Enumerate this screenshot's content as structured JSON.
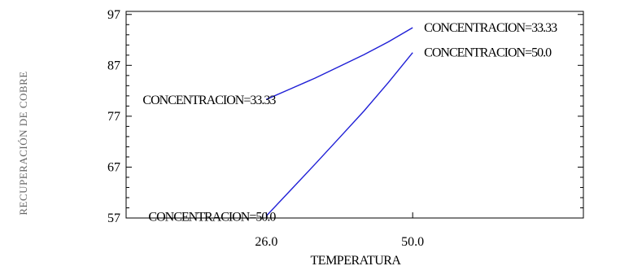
{
  "chart_data": {
    "type": "line",
    "title": "",
    "xlabel": "TEMPERATURA",
    "ylabel": "RECUPERACIÓN DE COBRE",
    "x_ticks": [
      "26.0",
      "50.0"
    ],
    "y_ticks": [
      "57",
      "67",
      "77",
      "87",
      "97"
    ],
    "xlim": [
      3.0,
      78.0
    ],
    "ylim": [
      57,
      97.6
    ],
    "series": [
      {
        "name": "CONCENTRACION=33.33",
        "color": "#1f1fd6",
        "x": [
          26.0,
          30.0,
          34.0,
          38.0,
          42.0,
          46.0,
          50.0
        ],
        "y": [
          80.3,
          82.4,
          84.5,
          86.8,
          89.1,
          91.6,
          94.4
        ]
      },
      {
        "name": "CONCENTRACION=50.0",
        "color": "#1f1fd6",
        "x": [
          26.0,
          30.0,
          34.0,
          38.0,
          42.0,
          46.0,
          50.0
        ],
        "y": [
          57.4,
          62.5,
          67.6,
          72.8,
          78.0,
          83.6,
          89.5
        ]
      }
    ],
    "line_labels": [
      {
        "text": "CONCENTRACION=33.33",
        "series": 0,
        "anchor": "start"
      },
      {
        "text": "CONCENTRACION=50.0",
        "series": 1,
        "anchor": "start"
      },
      {
        "text": "CONCENTRACION=33.33",
        "series": 0,
        "anchor": "end"
      },
      {
        "text": "CONCENTRACION=50.0",
        "series": 1,
        "anchor": "end"
      }
    ],
    "grid": false,
    "legend": "none"
  }
}
